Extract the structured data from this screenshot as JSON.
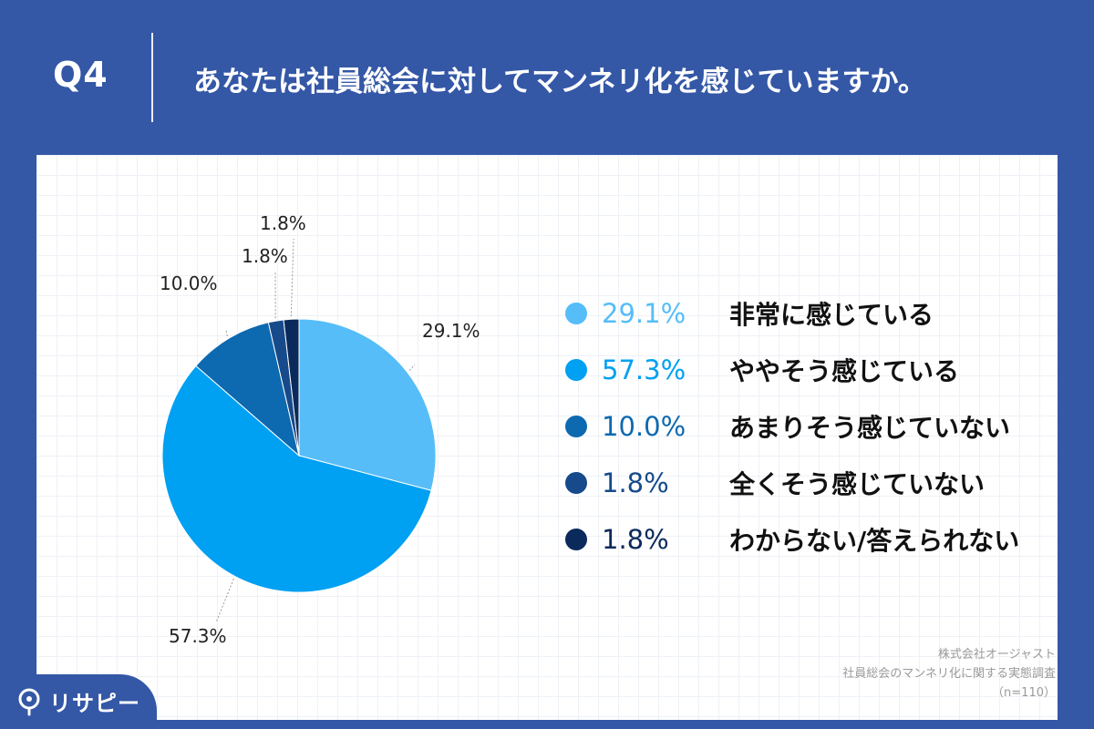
{
  "header": {
    "q_label": "Q4",
    "question": "あなたは社員総会に対してマンネリ化を感じていますか。"
  },
  "chart_data": {
    "type": "pie",
    "title": "",
    "start_angle_deg": 0,
    "direction": "clockwise",
    "slices": [
      {
        "label": "非常に感じている",
        "value": 29.1,
        "display": "29.1%",
        "color": "#56bdf8"
      },
      {
        "label": "ややそう感じている",
        "value": 57.3,
        "display": "57.3%",
        "color": "#00a0f2"
      },
      {
        "label": "あまりそう感じていない",
        "value": 10.0,
        "display": "10.0%",
        "color": "#0d69b0"
      },
      {
        "label": "全くそう感じていない",
        "value": 1.8,
        "display": "1.8%",
        "color": "#164a8a"
      },
      {
        "label": "わからない/答えられない",
        "value": 1.8,
        "display": "1.8%",
        "color": "#0b2a5c"
      }
    ],
    "legend_placement": "right"
  },
  "legend": {
    "value_colors": [
      "#56bdf8",
      "#00a0f2",
      "#0d69b0",
      "#164a8a",
      "#0b2a5c"
    ]
  },
  "source": {
    "company": "株式会社オージャスト",
    "survey": "社員総会のマンネリ化に関する実態調査",
    "n": "（n=110）"
  },
  "logo": {
    "text": "リサピー"
  }
}
